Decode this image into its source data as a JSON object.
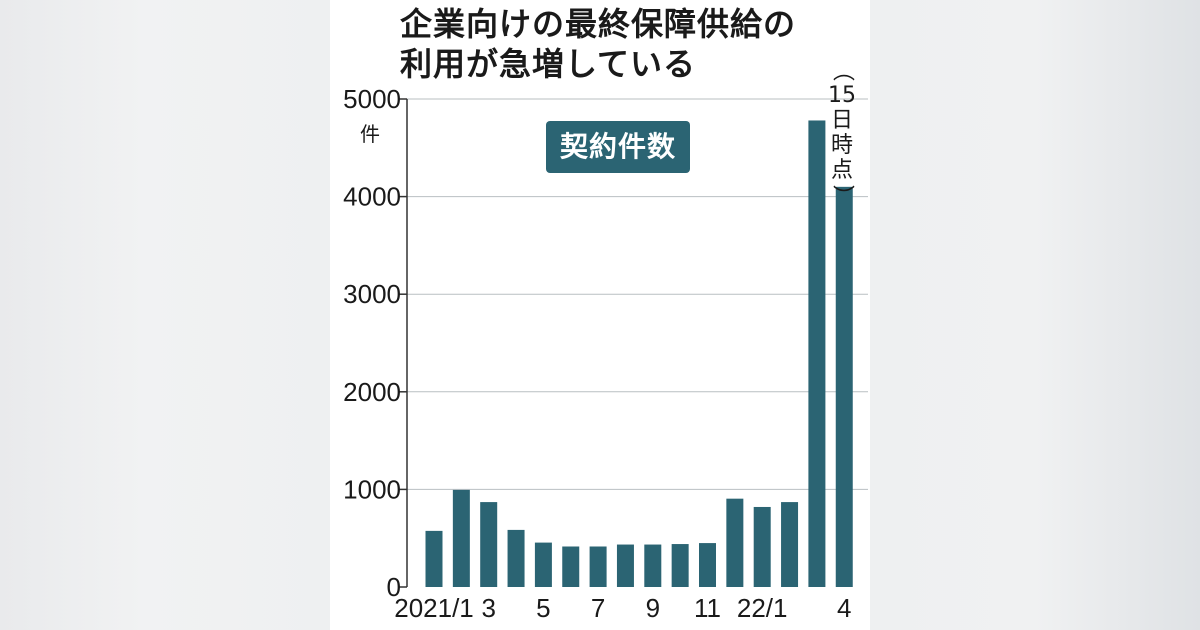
{
  "title_lines": [
    "企業向けの最終保障供給の",
    "利用が急増している"
  ],
  "series_badge": "契約件数",
  "unit_label": "件",
  "note_chars": [
    "（",
    "15",
    "日",
    "時",
    "点",
    "）"
  ],
  "colors": {
    "bar": "#2b6473",
    "grid": "#b9bfc2",
    "axis": "#333333"
  },
  "chart_data": {
    "type": "bar",
    "title": "企業向けの最終保障供給の利用が急増している",
    "ylabel": "件",
    "ylim": [
      0,
      5000
    ],
    "yticks": [
      0,
      1000,
      2000,
      3000,
      4000,
      5000
    ],
    "grid": true,
    "categories": [
      "2021/1",
      "2",
      "3",
      "4",
      "5",
      "6",
      "7",
      "8",
      "9",
      "10",
      "11",
      "12",
      "22/1",
      "2",
      "3",
      "4"
    ],
    "x_tick_labels": [
      "2021/1",
      "",
      "3",
      "",
      "5",
      "",
      "7",
      "",
      "9",
      "",
      "11",
      "",
      "22/1",
      "",
      "",
      "4"
    ],
    "series": [
      {
        "name": "契約件数",
        "values": [
          575,
          995,
          870,
          585,
          455,
          415,
          415,
          435,
          435,
          440,
          450,
          905,
          820,
          870,
          4780,
          4100
        ]
      }
    ],
    "annotation": "（15日時点）"
  }
}
